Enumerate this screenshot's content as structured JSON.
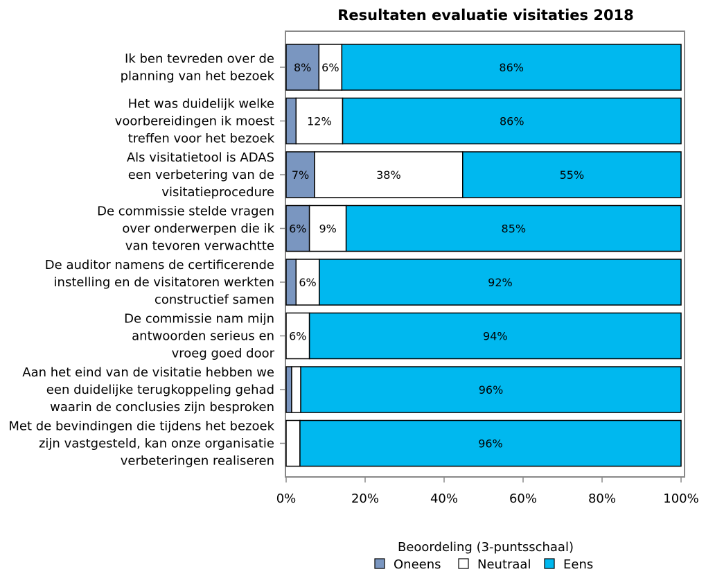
{
  "chart_data": {
    "type": "bar",
    "orientation": "horizontal",
    "stacked": true,
    "title": "Resultaten evaluatie visitaties 2018",
    "categories": [
      [
        "Ik ben tevreden over de",
        "planning van het bezoek"
      ],
      [
        "Het was duidelijk welke",
        "voorbereidingen ik moest",
        "treffen voor het bezoek"
      ],
      [
        "Als visitatietool is ADAS",
        "een verbetering van de",
        "visitatieprocedure"
      ],
      [
        "De commissie stelde vragen",
        "over onderwerpen die ik",
        "van tevoren verwachtte"
      ],
      [
        "De auditor namens de certificerende",
        "instelling en de visitatoren werkten",
        "constructief samen"
      ],
      [
        "De commissie nam mijn",
        "antwoorden serieus en",
        "vroeg goed door"
      ],
      [
        "Aan het eind van de visitatie hebben we",
        "een duidelijke terugkoppeling gehad",
        "waarin de conclusies zijn besproken"
      ],
      [
        "Met de bevindingen die tijdens het bezoek",
        "zijn vastgesteld, kan onze organisatie",
        "verbeteringen realiseren"
      ]
    ],
    "series": [
      {
        "name": "Oneens",
        "color": "#7a96c0",
        "values": [
          8.3,
          2.5,
          7.2,
          5.9,
          2.5,
          0,
          1.4,
          0
        ],
        "labels": [
          "8%",
          "",
          "7%",
          "6%",
          "",
          "",
          "",
          ""
        ]
      },
      {
        "name": "Neutraal",
        "color": "#ffffff",
        "values": [
          5.8,
          11.8,
          37.5,
          9.3,
          5.9,
          5.9,
          2.3,
          3.5
        ],
        "labels": [
          "6%",
          "12%",
          "38%",
          "9%",
          "6%",
          "6%",
          "",
          ""
        ]
      },
      {
        "name": "Eens",
        "color": "#00b8ef",
        "values": [
          85.9,
          85.7,
          55.3,
          84.8,
          91.6,
          94.1,
          96.3,
          96.5
        ],
        "labels": [
          "86%",
          "86%",
          "55%",
          "85%",
          "92%",
          "94%",
          "96%",
          "96%"
        ]
      }
    ],
    "xlim": [
      0,
      100
    ],
    "xticks": [
      "0%",
      "20%",
      "40%",
      "60%",
      "80%",
      "100%"
    ],
    "legend": {
      "title": "Beoordeling (3-puntsschaal)",
      "position": "bottom",
      "entries": [
        "Oneens",
        "Neutraal",
        "Eens"
      ]
    }
  }
}
